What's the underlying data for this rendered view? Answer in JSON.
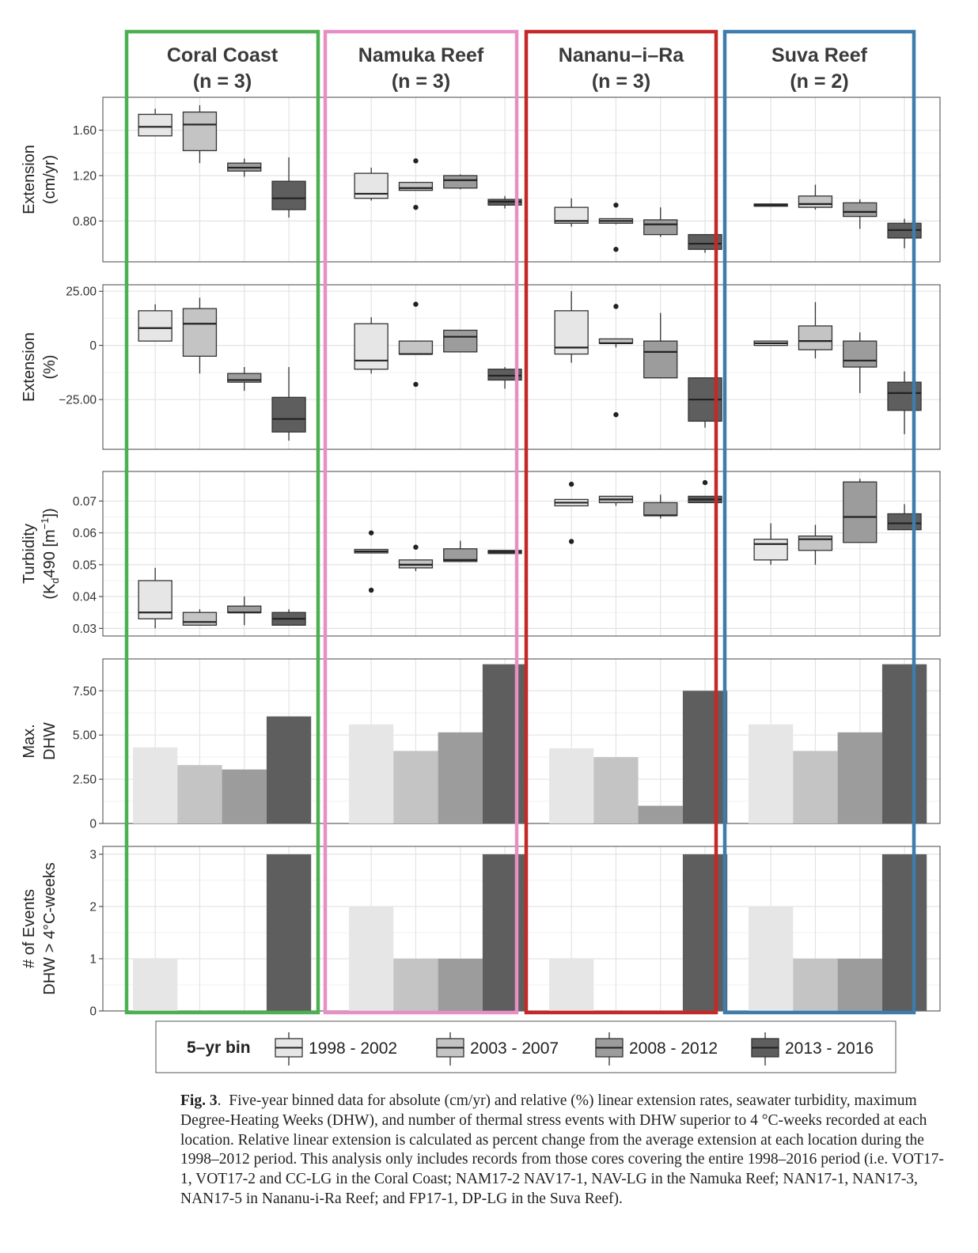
{
  "chart_data": {
    "type": "boxplot+bar",
    "panels_header": [
      {
        "name": "Coral Coast",
        "n_label": "(n = 3)",
        "color": "#4caf50"
      },
      {
        "name": "Namuka Reef",
        "n_label": "(n = 3)",
        "color": "#e78fc4"
      },
      {
        "name": "Nananu–i–Ra",
        "n_label": "(n = 3)",
        "color": "#c62828"
      },
      {
        "name": "Suva Reef",
        "n_label": "(n = 2)",
        "color": "#3d7cad"
      }
    ],
    "bins": [
      "1998 - 2002",
      "2003 - 2007",
      "2008 - 2012",
      "2013 - 2016"
    ],
    "bin_colors": [
      "#e6e6e6",
      "#c4c4c4",
      "#9c9c9c",
      "#5e5e5e"
    ],
    "rows": [
      {
        "id": "extension_abs",
        "ylabel_lines": [
          "Extension",
          "(cm/yr)"
        ],
        "type": "box",
        "ylim": [
          0.44,
          1.89
        ],
        "ticks": [
          0.8,
          1.2,
          1.6
        ],
        "tick_labels": [
          "0.80",
          "1.20",
          "1.60"
        ],
        "boxes": [
          [
            {
              "min": 1.55,
              "q1": 1.55,
              "med": 1.63,
              "q3": 1.74,
              "max": 1.79,
              "outliers": []
            },
            {
              "min": 1.31,
              "q1": 1.42,
              "med": 1.65,
              "q3": 1.76,
              "max": 1.82,
              "outliers": []
            },
            {
              "min": 1.19,
              "q1": 1.24,
              "med": 1.27,
              "q3": 1.31,
              "max": 1.35,
              "outliers": []
            },
            {
              "min": 0.83,
              "q1": 0.9,
              "med": 1.0,
              "q3": 1.15,
              "max": 1.36,
              "outliers": []
            }
          ],
          [
            {
              "min": 0.98,
              "q1": 1.0,
              "med": 1.04,
              "q3": 1.22,
              "max": 1.27,
              "outliers": []
            },
            {
              "min": 1.07,
              "q1": 1.07,
              "med": 1.09,
              "q3": 1.14,
              "max": 1.14,
              "outliers": [
                1.33,
                0.92
              ]
            },
            {
              "min": 1.08,
              "q1": 1.09,
              "med": 1.16,
              "q3": 1.2,
              "max": 1.21,
              "outliers": []
            },
            {
              "min": 0.91,
              "q1": 0.94,
              "med": 0.97,
              "q3": 0.99,
              "max": 1.02,
              "outliers": []
            }
          ],
          [
            {
              "min": 0.75,
              "q1": 0.78,
              "med": 0.8,
              "q3": 0.92,
              "max": 1.0,
              "outliers": []
            },
            {
              "min": 0.77,
              "q1": 0.78,
              "med": 0.8,
              "q3": 0.82,
              "max": 0.82,
              "outliers": [
                0.94,
                0.55
              ]
            },
            {
              "min": 0.66,
              "q1": 0.68,
              "med": 0.77,
              "q3": 0.81,
              "max": 0.92,
              "outliers": []
            },
            {
              "min": 0.52,
              "q1": 0.55,
              "med": 0.6,
              "q3": 0.68,
              "max": 0.68,
              "outliers": []
            }
          ],
          [
            {
              "min": 0.93,
              "q1": 0.93,
              "med": 0.94,
              "q3": 0.95,
              "max": 0.95,
              "outliers": []
            },
            {
              "min": 0.9,
              "q1": 0.92,
              "med": 0.95,
              "q3": 1.02,
              "max": 1.12,
              "outliers": []
            },
            {
              "min": 0.73,
              "q1": 0.84,
              "med": 0.88,
              "q3": 0.96,
              "max": 0.99,
              "outliers": []
            },
            {
              "min": 0.56,
              "q1": 0.65,
              "med": 0.72,
              "q3": 0.78,
              "max": 0.82,
              "outliers": []
            }
          ]
        ]
      },
      {
        "id": "extension_rel",
        "ylabel_lines": [
          "Extension",
          "(%)"
        ],
        "type": "box",
        "ylim": [
          -48,
          28
        ],
        "ticks": [
          25,
          0,
          -25
        ],
        "tick_labels": [
          "25.00",
          "0",
          "−25.00"
        ],
        "boxes": [
          [
            {
              "min": 2,
              "q1": 2,
              "med": 8,
              "q3": 16,
              "max": 19,
              "outliers": []
            },
            {
              "min": -13,
              "q1": -5,
              "med": 10,
              "q3": 17,
              "max": 22,
              "outliers": []
            },
            {
              "min": -21,
              "q1": -17,
              "med": -16,
              "q3": -13,
              "max": -10,
              "outliers": []
            },
            {
              "min": -44,
              "q1": -40,
              "med": -34,
              "q3": -24,
              "max": -10,
              "outliers": []
            }
          ],
          [
            {
              "min": -13,
              "q1": -11,
              "med": -7,
              "q3": 10,
              "max": 13,
              "outliers": []
            },
            {
              "min": -4,
              "q1": -4,
              "med": -4,
              "q3": 2,
              "max": 2,
              "outliers": [
                19,
                -18
              ]
            },
            {
              "min": -3,
              "q1": -3,
              "med": 4,
              "q3": 7,
              "max": 7,
              "outliers": []
            },
            {
              "min": -20,
              "q1": -16,
              "med": -14,
              "q3": -11,
              "max": -10,
              "outliers": []
            }
          ],
          [
            {
              "min": -8,
              "q1": -4,
              "med": -1,
              "q3": 16,
              "max": 25,
              "outliers": []
            },
            {
              "min": -1,
              "q1": 1,
              "med": 1,
              "q3": 3,
              "max": 3,
              "outliers": [
                18,
                -32
              ]
            },
            {
              "min": -15,
              "q1": -15,
              "med": -3,
              "q3": 2,
              "max": 15,
              "outliers": []
            },
            {
              "min": -38,
              "q1": -35,
              "med": -25,
              "q3": -15,
              "max": -15,
              "outliers": []
            }
          ],
          [
            {
              "min": 0,
              "q1": 0,
              "med": 1,
              "q3": 2,
              "max": 2,
              "outliers": []
            },
            {
              "min": -6,
              "q1": -2,
              "med": 2,
              "q3": 9,
              "max": 20,
              "outliers": []
            },
            {
              "min": -22,
              "q1": -10,
              "med": -7,
              "q3": 2,
              "max": 6,
              "outliers": []
            },
            {
              "min": -41,
              "q1": -30,
              "med": -22,
              "q3": -17,
              "max": -12,
              "outliers": []
            }
          ]
        ]
      },
      {
        "id": "turbidity",
        "ylabel_lines": [
          "Turbidity",
          "(Kd490 [m⁻¹])"
        ],
        "type": "box",
        "ylim": [
          0.0276,
          0.0793
        ],
        "ticks": [
          0.03,
          0.04,
          0.05,
          0.06,
          0.07
        ],
        "tick_labels": [
          "0.03",
          "0.04",
          "0.05",
          "0.06",
          "0.07"
        ],
        "boxes": [
          [
            {
              "min": 0.03,
              "q1": 0.033,
              "med": 0.035,
              "q3": 0.045,
              "max": 0.049,
              "outliers": []
            },
            {
              "min": 0.031,
              "q1": 0.031,
              "med": 0.032,
              "q3": 0.035,
              "max": 0.036,
              "outliers": []
            },
            {
              "min": 0.031,
              "q1": 0.035,
              "med": 0.035,
              "q3": 0.037,
              "max": 0.04,
              "outliers": []
            },
            {
              "min": 0.031,
              "q1": 0.031,
              "med": 0.033,
              "q3": 0.035,
              "max": 0.036,
              "outliers": []
            }
          ],
          [
            {
              "min": 0.0537,
              "q1": 0.0537,
              "med": 0.0542,
              "q3": 0.0548,
              "max": 0.0548,
              "outliers": [
                0.06,
                0.042
              ]
            },
            {
              "min": 0.048,
              "q1": 0.049,
              "med": 0.05,
              "q3": 0.0515,
              "max": 0.0515,
              "outliers": [
                0.0555
              ]
            },
            {
              "min": 0.051,
              "q1": 0.051,
              "med": 0.0515,
              "q3": 0.055,
              "max": 0.0575,
              "outliers": []
            },
            {
              "min": 0.0535,
              "q1": 0.0535,
              "med": 0.054,
              "q3": 0.0545,
              "max": 0.0545,
              "outliers": []
            }
          ],
          [
            {
              "min": 0.0685,
              "q1": 0.0685,
              "med": 0.0695,
              "q3": 0.0705,
              "max": 0.0705,
              "outliers": [
                0.0753,
                0.0573
              ]
            },
            {
              "min": 0.0685,
              "q1": 0.0695,
              "med": 0.0705,
              "q3": 0.0715,
              "max": 0.0715,
              "outliers": []
            },
            {
              "min": 0.0645,
              "q1": 0.0655,
              "med": 0.0655,
              "q3": 0.0695,
              "max": 0.072,
              "outliers": []
            },
            {
              "min": 0.0695,
              "q1": 0.0695,
              "med": 0.0705,
              "q3": 0.0715,
              "max": 0.0715,
              "outliers": [
                0.0758
              ]
            }
          ],
          [
            {
              "min": 0.05,
              "q1": 0.0515,
              "med": 0.0565,
              "q3": 0.058,
              "max": 0.063,
              "outliers": []
            },
            {
              "min": 0.05,
              "q1": 0.0545,
              "med": 0.058,
              "q3": 0.059,
              "max": 0.0625,
              "outliers": []
            },
            {
              "min": 0.057,
              "q1": 0.057,
              "med": 0.065,
              "q3": 0.076,
              "max": 0.077,
              "outliers": []
            },
            {
              "min": 0.061,
              "q1": 0.061,
              "med": 0.063,
              "q3": 0.066,
              "max": 0.069,
              "outliers": []
            }
          ]
        ]
      },
      {
        "id": "max_dhw",
        "ylabel_lines": [
          "Max.",
          "DHW"
        ],
        "type": "bar",
        "ylim": [
          0,
          9.3
        ],
        "ticks": [
          0,
          2.5,
          5,
          7.5
        ],
        "tick_labels": [
          "0",
          "2.50",
          "5.00",
          "7.50"
        ],
        "values": [
          [
            4.3,
            3.3,
            3.05,
            6.05
          ],
          [
            5.6,
            4.1,
            5.15,
            9.0
          ],
          [
            4.25,
            3.75,
            1.0,
            7.5
          ],
          [
            5.6,
            4.1,
            5.15,
            9.0
          ]
        ]
      },
      {
        "id": "events",
        "ylabel_lines": [
          "# of Events",
          "DHW > 4°C-weeks"
        ],
        "type": "bar",
        "ylim": [
          0,
          3.15
        ],
        "ticks": [
          0,
          1,
          2,
          3
        ],
        "tick_labels": [
          "0",
          "1",
          "2",
          "3"
        ],
        "values": [
          [
            1,
            0,
            0,
            3
          ],
          [
            2,
            1,
            1,
            3
          ],
          [
            1,
            0,
            0,
            3
          ],
          [
            2,
            1,
            1,
            3
          ]
        ]
      }
    ],
    "legend": {
      "title": "5–yr bin",
      "placement": "bottom"
    }
  },
  "caption": {
    "label": "Fig. 3",
    "text": "Five-year binned data for absolute (cm/yr) and relative (%) linear extension rates, seawater turbidity, maximum Degree-Heating Weeks (DHW), and number of thermal stress events with DHW superior to 4 °C-weeks recorded at each location. Relative linear extension is calculated as percent change from the average extension at each location during the 1998–2012 period. This analysis only includes records from those cores covering the entire 1998–2016 period (i.e. VOT17-1, VOT17-2 and CC-LG in the Coral Coast; NAM17-2 NAV17-1, NAV-LG in the Namuka Reef; NAN17-1, NAN17-3, NAN17-5 in Nananu-i-Ra Reef; and FP17-1, DP-LG in the Suva Reef)."
  }
}
